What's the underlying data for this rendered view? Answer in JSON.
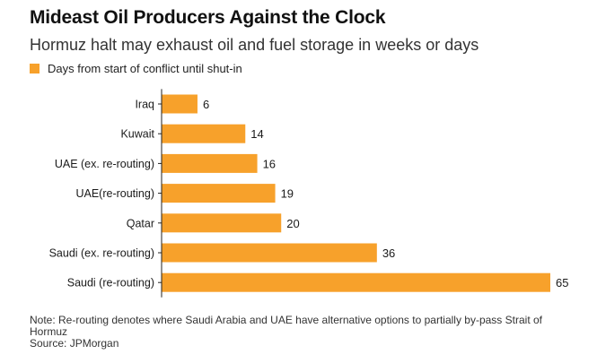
{
  "colors": {
    "bar": "#f7a12b",
    "axis": "#222222"
  },
  "chart_data": {
    "type": "bar",
    "orientation": "horizontal",
    "title": "Mideast Oil Producers Against the Clock",
    "subtitle": "Hormuz halt may exhaust oil and fuel storage in weeks or days",
    "legend": {
      "placement": "top-left",
      "entries": [
        "Days from start of conflict until shut-in"
      ]
    },
    "categories": [
      "Iraq",
      "Kuwait",
      "UAE (ex. re-routing)",
      "UAE(re-routing)",
      "Qatar",
      "Saudi (ex. re-routing)",
      "Saudi (re-routing)"
    ],
    "series": [
      {
        "name": "Days from start of conflict until shut-in",
        "values": [
          6,
          14,
          16,
          19,
          20,
          36,
          65
        ]
      }
    ],
    "xlim": [
      0,
      65
    ],
    "grid": false,
    "data_labels": true
  },
  "footer": {
    "note": "Note: Re-routing denotes where Saudi Arabia and UAE have alternative options to partially by-pass Strait of Hormuz",
    "source": "Source: JPMorgan"
  }
}
